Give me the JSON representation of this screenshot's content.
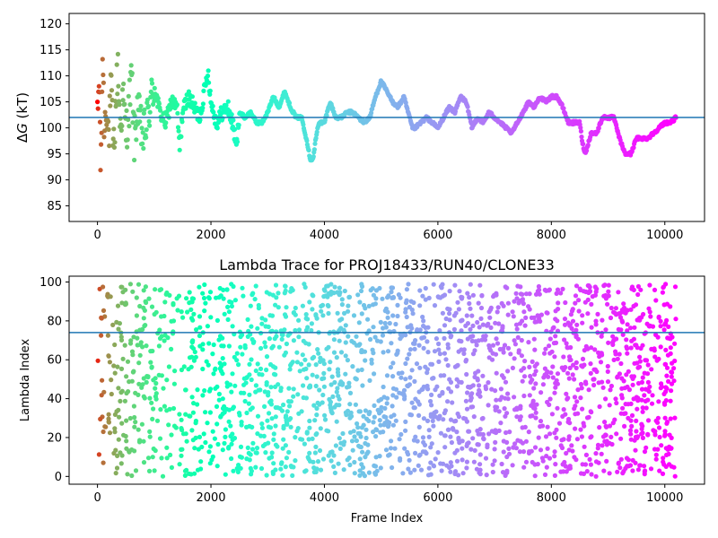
{
  "chart_data": [
    {
      "type": "scatter",
      "title": "",
      "xlabel": "",
      "ylabel_prefix": "Δ",
      "ylabel_var": "G",
      "ylabel_suffix": " (kT)",
      "xlim": [
        -500,
        10700
      ],
      "ylim": [
        82,
        122
      ],
      "xticks": [
        0,
        2000,
        4000,
        6000,
        8000,
        10000
      ],
      "yticks": [
        85,
        90,
        95,
        100,
        105,
        110,
        115,
        120
      ],
      "hline": 102,
      "hline_color": "#1f77b4",
      "colormap": "rainbow (reversed over frame index)",
      "grid": false,
      "series": [
        {
          "x": [
            0,
            30,
            60,
            90,
            120,
            160,
            200,
            240,
            280,
            320,
            360,
            400,
            450,
            500,
            550,
            600,
            650,
            700,
            750,
            800,
            850,
            900,
            1000,
            1100,
            1200,
            1300,
            1400,
            1450,
            1500,
            1600,
            1700,
            1800,
            1900,
            1950,
            2000,
            2100,
            2200,
            2300,
            2400,
            2450,
            2500,
            2600,
            2700,
            2800,
            2900,
            3000,
            3100,
            3200,
            3300,
            3400,
            3500,
            3600,
            3700,
            3750,
            3800,
            3850,
            3900,
            4000,
            4100,
            4200,
            4300,
            4400,
            4500,
            4600,
            4700,
            4800,
            4900,
            5000,
            5100,
            5200,
            5300,
            5400,
            5500,
            5550,
            5600,
            5700,
            5800,
            5900,
            6000,
            6100,
            6200,
            6300,
            6400,
            6500,
            6600,
            6700,
            6800,
            6900,
            7000,
            7100,
            7200,
            7300,
            7400,
            7500,
            7600,
            7700,
            7800,
            7900,
            8000,
            8100,
            8200,
            8300,
            8400,
            8500,
            8550,
            8600,
            8700,
            8800,
            8900,
            9000,
            9100,
            9200,
            9300,
            9350,
            9400,
            9500,
            9600,
            9700,
            9800,
            9900,
            10000,
            10100,
            10200
          ],
          "y": [
            101,
            110,
            90,
            115,
            100,
            105,
            98,
            108,
            95,
            104,
            112,
            100,
            106,
            99,
            103,
            110,
            97,
            104,
            101,
            98,
            100,
            103,
            108,
            103,
            101,
            105,
            104,
            96,
            103,
            106,
            104,
            102,
            108,
            111,
            105,
            101,
            103,
            104,
            100,
            96,
            103,
            102,
            103,
            101,
            101,
            103,
            106,
            104,
            107,
            104,
            102,
            102,
            97,
            94,
            94,
            98,
            101,
            101,
            105,
            102,
            102,
            103,
            103,
            102,
            101,
            102,
            106,
            109,
            107,
            105,
            104,
            106,
            102,
            100,
            100,
            101,
            102,
            101,
            100,
            102,
            104,
            103,
            106,
            105,
            100,
            102,
            101,
            103,
            102,
            101,
            100,
            99,
            101,
            103,
            105,
            104,
            106,
            105,
            106,
            106,
            104,
            101,
            101,
            101,
            97,
            95,
            99,
            99,
            102,
            102,
            102,
            98,
            95,
            95,
            95,
            98,
            98,
            98,
            99,
            100,
            101,
            101,
            102
          ]
        }
      ]
    },
    {
      "type": "scatter",
      "title": "Lambda Trace for PROJ18433/RUN40/CLONE33",
      "xlabel": "Frame Index",
      "ylabel": "Lambda Index",
      "xlim": [
        -500,
        10700
      ],
      "ylim": [
        -4,
        103
      ],
      "xticks": [
        0,
        2000,
        4000,
        6000,
        8000,
        10000
      ],
      "yticks": [
        0,
        20,
        40,
        60,
        80,
        100
      ],
      "hline": 74,
      "hline_color": "#1f77b4",
      "colormap": "rainbow (reversed over frame index)",
      "grid": false,
      "series": [
        {
          "x_range": [
            0,
            10200
          ],
          "y_range": [
            0,
            99
          ],
          "point_count": 2200
        }
      ]
    }
  ]
}
